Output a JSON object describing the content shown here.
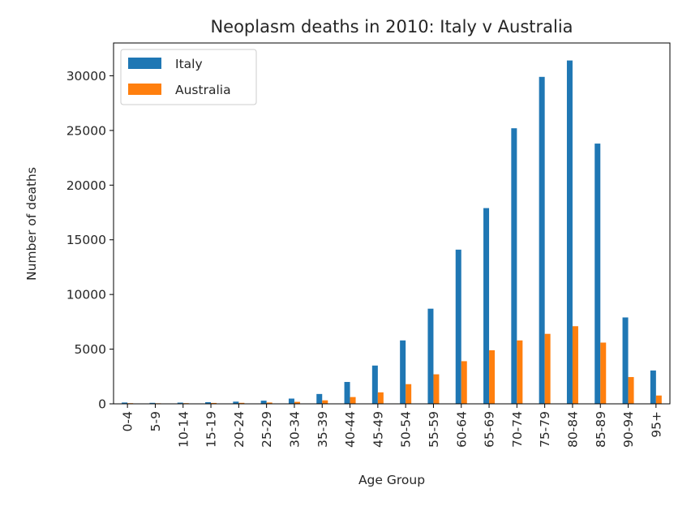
{
  "chart_data": {
    "type": "bar",
    "title": "Neoplasm deaths in 2010: Italy v Australia",
    "xlabel": "Age Group",
    "ylabel": "Number of deaths",
    "ylim": [
      0,
      33000
    ],
    "yticks": [
      0,
      5000,
      10000,
      15000,
      20000,
      25000,
      30000
    ],
    "grid": false,
    "legend_position": "top-left",
    "categories": [
      "0-4",
      "5-9",
      "10-14",
      "15-19",
      "20-24",
      "25-29",
      "30-34",
      "35-39",
      "40-44",
      "45-49",
      "50-54",
      "55-59",
      "60-64",
      "65-69",
      "70-74",
      "75-79",
      "80-84",
      "85-89",
      "90-94",
      "95+"
    ],
    "series": [
      {
        "name": "Italy",
        "color": "#1f77b4",
        "values": [
          120,
          90,
          110,
          150,
          200,
          290,
          480,
          900,
          2000,
          3500,
          5800,
          8700,
          14100,
          17900,
          25200,
          29900,
          31400,
          23800,
          7900,
          3050
        ]
      },
      {
        "name": "Australia",
        "color": "#ff7f0e",
        "values": [
          60,
          50,
          60,
          80,
          90,
          120,
          180,
          320,
          620,
          1050,
          1800,
          2700,
          3900,
          4900,
          5800,
          6400,
          7100,
          5600,
          2450,
          760
        ]
      }
    ]
  }
}
